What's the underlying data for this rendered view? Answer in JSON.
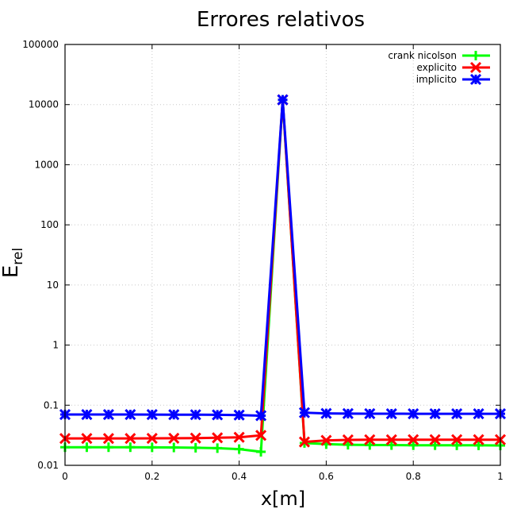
{
  "chart_data": {
    "type": "line",
    "title": "Errores relativos",
    "xlabel": "x[m]",
    "ylabel_main": "E",
    "ylabel_sub": "rel",
    "xlim": [
      0,
      1
    ],
    "ylim": [
      0.01,
      100000
    ],
    "yscale": "log",
    "grid": true,
    "legend_position": "top-right",
    "x_ticks": [
      0,
      0.2,
      0.4,
      0.6,
      0.8,
      1
    ],
    "x_tick_labels": [
      "0",
      "0.2",
      "0.4",
      "0.6",
      "0.8",
      "1"
    ],
    "y_ticks": [
      0.01,
      0.1,
      1,
      10,
      100,
      1000,
      10000,
      100000
    ],
    "y_tick_labels": [
      "0.01",
      "0.1",
      "1",
      "10",
      "100",
      "1000",
      "10000",
      "100000"
    ],
    "series": [
      {
        "name": "crank nicolson",
        "color": "#00ff00",
        "marker": "plus",
        "x": [
          0,
          0.05,
          0.1,
          0.15,
          0.2,
          0.25,
          0.3,
          0.35,
          0.4,
          0.45,
          0.5,
          0.55,
          0.6,
          0.65,
          0.7,
          0.75,
          0.8,
          0.85,
          0.9,
          0.95,
          1.0
        ],
        "y": [
          0.02,
          0.02,
          0.02,
          0.02,
          0.0199,
          0.0198,
          0.0196,
          0.0193,
          0.0186,
          0.0168,
          12000,
          0.0235,
          0.0225,
          0.022,
          0.0218,
          0.0217,
          0.0216,
          0.0216,
          0.0215,
          0.0215,
          0.0214
        ]
      },
      {
        "name": "explicito",
        "color": "#ff0000",
        "marker": "cross",
        "x": [
          0,
          0.05,
          0.1,
          0.15,
          0.2,
          0.25,
          0.3,
          0.35,
          0.4,
          0.45,
          0.5,
          0.55,
          0.6,
          0.65,
          0.7,
          0.75,
          0.8,
          0.85,
          0.9,
          0.95,
          1.0
        ],
        "y": [
          0.028,
          0.028,
          0.028,
          0.028,
          0.0281,
          0.0282,
          0.0284,
          0.0287,
          0.0293,
          0.0315,
          12000,
          0.0245,
          0.026,
          0.0265,
          0.0266,
          0.0266,
          0.0267,
          0.0267,
          0.0267,
          0.0267,
          0.0267
        ]
      },
      {
        "name": "implicito",
        "color": "#0000ff",
        "marker": "star",
        "x": [
          0,
          0.05,
          0.1,
          0.15,
          0.2,
          0.25,
          0.3,
          0.35,
          0.4,
          0.45,
          0.5,
          0.55,
          0.6,
          0.65,
          0.7,
          0.75,
          0.8,
          0.85,
          0.9,
          0.95,
          1.0
        ],
        "y": [
          0.07,
          0.07,
          0.07,
          0.07,
          0.0698,
          0.0697,
          0.0695,
          0.0692,
          0.0685,
          0.067,
          12000,
          0.075,
          0.073,
          0.0725,
          0.0722,
          0.0721,
          0.072,
          0.072,
          0.072,
          0.072,
          0.072
        ]
      }
    ]
  }
}
